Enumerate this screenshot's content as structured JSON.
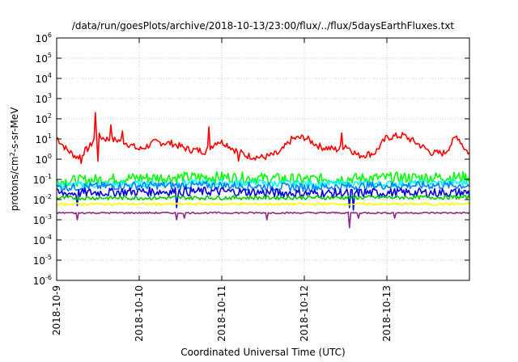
{
  "chart_data": {
    "type": "line",
    "title": "/data/run/goesPlots/archive/2018-10-13/23:00/flux/../flux/5daysEarthFluxes.txt",
    "xlabel": "Coordinated Universal Time (UTC)",
    "ylabel": "protons/cm",
    "ylabel_sup": "2",
    "ylabel_tail": "-s-sr-MeV",
    "y_scale": "log",
    "ylim": [
      1e-06,
      1000000.0
    ],
    "xlim": [
      0,
      5
    ],
    "grid": true,
    "legend": "none",
    "x_tick_positions": [
      0,
      1,
      2,
      3,
      4
    ],
    "x_tick_labels": [
      "2018-10-9",
      "2018-10-10",
      "2018-10-11",
      "2018-10-12",
      "2018-10-13"
    ],
    "y_tick_exponents": [
      -6,
      -5,
      -4,
      -3,
      -2,
      -1,
      0,
      1,
      2,
      3,
      4,
      5,
      6
    ],
    "y_tick_base": "10",
    "series": [
      {
        "color": "#ff0000",
        "baseline": [
          [
            0,
            12
          ],
          [
            0.12,
            3
          ],
          [
            0.25,
            1.2
          ],
          [
            0.4,
            4
          ],
          [
            0.48,
            15
          ],
          [
            0.6,
            10
          ],
          [
            0.8,
            8
          ],
          [
            1.0,
            3
          ],
          [
            1.2,
            7
          ],
          [
            1.4,
            6
          ],
          [
            1.6,
            3
          ],
          [
            1.8,
            2.5
          ],
          [
            1.95,
            8
          ],
          [
            2.05,
            6
          ],
          [
            2.15,
            3
          ],
          [
            2.3,
            1.5
          ],
          [
            2.5,
            1.2
          ],
          [
            2.7,
            2
          ],
          [
            2.85,
            10
          ],
          [
            3.0,
            12
          ],
          [
            3.2,
            4
          ],
          [
            3.4,
            3
          ],
          [
            3.5,
            5
          ],
          [
            3.65,
            1.5
          ],
          [
            3.85,
            2
          ],
          [
            4.0,
            12
          ],
          [
            4.2,
            15
          ],
          [
            4.4,
            5
          ],
          [
            4.55,
            2
          ],
          [
            4.7,
            2
          ],
          [
            4.85,
            15
          ],
          [
            4.95,
            3
          ],
          [
            5.0,
            2
          ]
        ],
        "jitter": 0.35,
        "spikes": [
          [
            0.47,
            200
          ],
          [
            0.5,
            20
          ],
          [
            0.65,
            50
          ],
          [
            0.8,
            25
          ],
          [
            1.85,
            40
          ],
          [
            3.45,
            20
          ]
        ],
        "dips": [
          [
            0.3,
            0.6
          ],
          [
            0.5,
            0.8
          ],
          [
            2.2,
            0.8
          ]
        ]
      },
      {
        "color": "#00ff00",
        "baseline": [
          [
            0,
            0.08
          ],
          [
            1,
            0.12
          ],
          [
            2,
            0.13
          ],
          [
            3,
            0.1
          ],
          [
            4,
            0.12
          ],
          [
            5,
            0.13
          ]
        ],
        "jitter": 0.55
      },
      {
        "color": "#00ffff",
        "baseline": [
          [
            0,
            0.05
          ],
          [
            1,
            0.06
          ],
          [
            2,
            0.07
          ],
          [
            3,
            0.06
          ],
          [
            4,
            0.06
          ],
          [
            5,
            0.07
          ]
        ],
        "jitter": 0.35
      },
      {
        "color": "#0080ff",
        "baseline": [
          [
            0,
            0.04
          ],
          [
            1,
            0.05
          ],
          [
            2,
            0.05
          ],
          [
            3,
            0.04
          ],
          [
            4,
            0.05
          ],
          [
            5,
            0.05
          ]
        ],
        "jitter": 0.4
      },
      {
        "color": "#0000dd",
        "baseline": [
          [
            0,
            0.02
          ],
          [
            1,
            0.025
          ],
          [
            2,
            0.025
          ],
          [
            3,
            0.02
          ],
          [
            4,
            0.022
          ],
          [
            5,
            0.022
          ]
        ],
        "jitter": 0.45,
        "dips": [
          [
            0.25,
            0.005
          ],
          [
            1.45,
            0.004
          ],
          [
            3.55,
            0.004
          ],
          [
            3.6,
            0.003
          ]
        ]
      },
      {
        "color": "#00cc00",
        "baseline": [
          [
            0,
            0.012
          ],
          [
            5,
            0.013
          ]
        ],
        "jitter": 0.2
      },
      {
        "color": "#ffff00",
        "baseline": [
          [
            0,
            0.006
          ],
          [
            5,
            0.006
          ]
        ],
        "jitter": 0.12
      },
      {
        "color": "#8b2a8b",
        "baseline": [
          [
            0,
            0.0022
          ],
          [
            5,
            0.0022
          ]
        ],
        "jitter": 0.08,
        "dips": [
          [
            0.25,
            0.001
          ],
          [
            1.45,
            0.001
          ],
          [
            1.55,
            0.0012
          ],
          [
            2.55,
            0.001
          ],
          [
            3.55,
            0.0004
          ],
          [
            3.65,
            0.0012
          ],
          [
            4.1,
            0.0012
          ]
        ]
      }
    ]
  }
}
